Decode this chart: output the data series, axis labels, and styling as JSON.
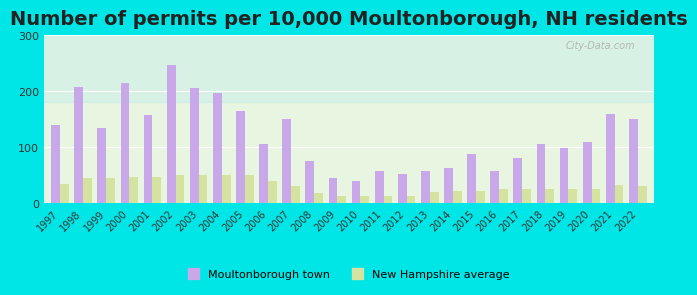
{
  "title": "Number of permits per 10,000 Moultonborough, NH residents",
  "years": [
    1997,
    1998,
    1999,
    2000,
    2001,
    2002,
    2003,
    2004,
    2005,
    2006,
    2007,
    2008,
    2009,
    2010,
    2011,
    2012,
    2013,
    2014,
    2015,
    2016,
    2017,
    2018,
    2019,
    2020,
    2021,
    2022
  ],
  "moultonborough": [
    140,
    208,
    135,
    215,
    158,
    247,
    205,
    197,
    165,
    105,
    150,
    75,
    45,
    40,
    57,
    52,
    57,
    63,
    88,
    57,
    80,
    105,
    98,
    110,
    160,
    150
  ],
  "nh_average": [
    35,
    45,
    45,
    47,
    47,
    50,
    50,
    50,
    50,
    40,
    30,
    18,
    13,
    13,
    13,
    13,
    20,
    22,
    22,
    25,
    25,
    25,
    25,
    25,
    32,
    30
  ],
  "moultonborough_color": "#c8a8e8",
  "nh_average_color": "#d4e4a0",
  "background_outer": "#00e5e5",
  "background_plot": "#e8f5e0",
  "plot_bg_top": "#e0f0f8",
  "ylim": [
    0,
    300
  ],
  "yticks": [
    0,
    100,
    200,
    300
  ],
  "title_fontsize": 14,
  "bar_width": 0.38,
  "legend_moultonborough": "Moultonborough town",
  "legend_nh": "New Hampshire average"
}
